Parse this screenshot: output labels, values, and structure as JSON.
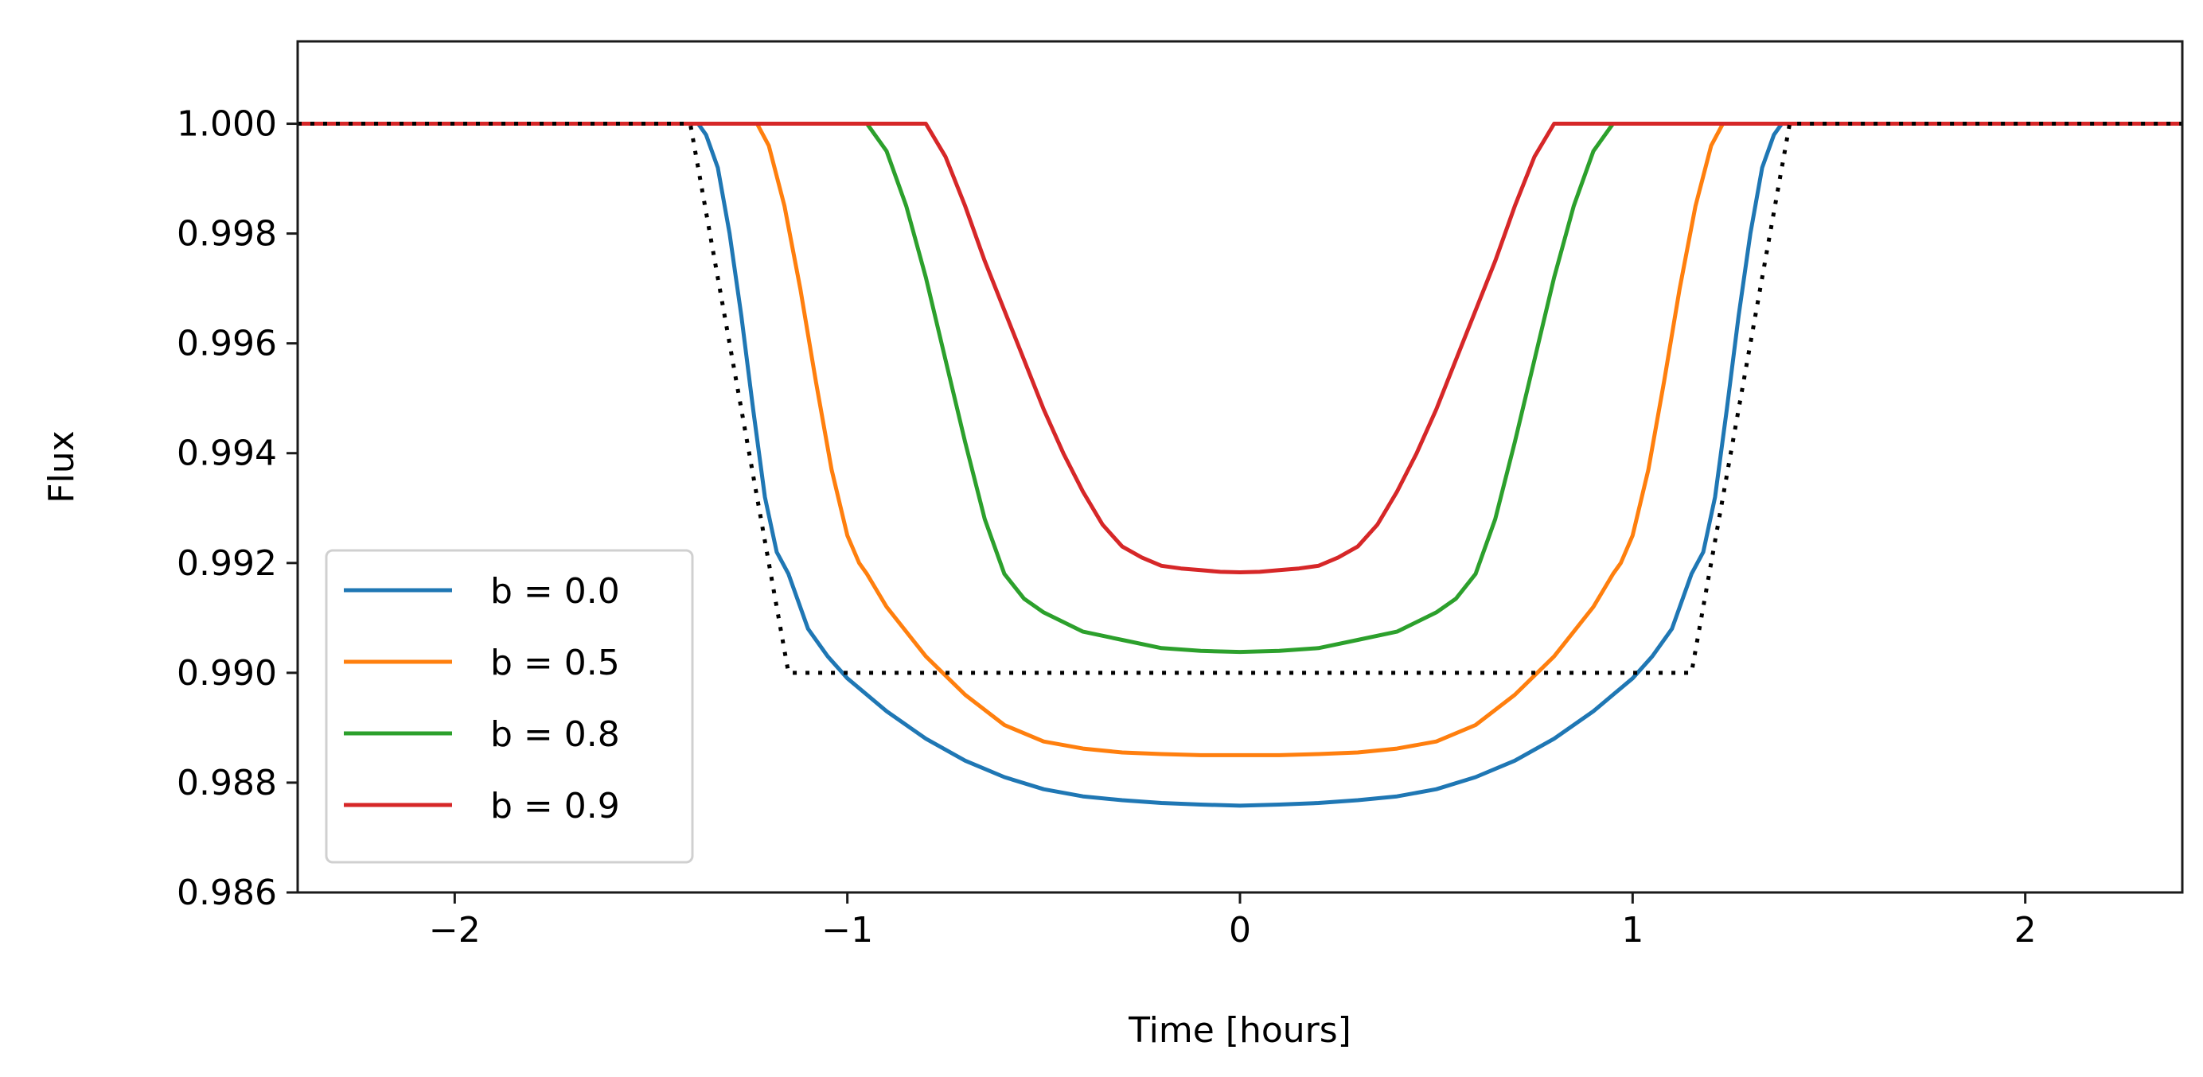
{
  "chart_data": {
    "type": "line",
    "title": "",
    "xlabel": "Time [hours]",
    "ylabel": "Flux",
    "xlim": [
      -2.4,
      2.4
    ],
    "ylim": [
      0.986,
      1.0015
    ],
    "grid": false,
    "legend_position": "lower-left",
    "xticks": [
      -2,
      -1,
      0,
      1,
      2
    ],
    "xtick_labels": [
      "−2",
      "−1",
      "0",
      "1",
      "2"
    ],
    "yticks": [
      0.986,
      0.988,
      0.99,
      0.992,
      0.994,
      0.996,
      0.998,
      1.0
    ],
    "ytick_labels": [
      "0.986",
      "0.988",
      "0.990",
      "0.992",
      "0.994",
      "0.996",
      "0.998",
      "1.000"
    ],
    "series": [
      {
        "name": "b = 0.0",
        "color": "#1f77b4",
        "style": "solid",
        "x": [
          -2.4,
          -1.38,
          -1.36,
          -1.33,
          -1.3,
          -1.27,
          -1.24,
          -1.21,
          -1.18,
          -1.15,
          -1.1,
          -1.05,
          -1.0,
          -0.9,
          -0.8,
          -0.7,
          -0.6,
          -0.5,
          -0.4,
          -0.3,
          -0.2,
          -0.1,
          0.0,
          0.1,
          0.2,
          0.3,
          0.4,
          0.5,
          0.6,
          0.7,
          0.8,
          0.9,
          1.0,
          1.05,
          1.1,
          1.15,
          1.18,
          1.21,
          1.24,
          1.27,
          1.3,
          1.33,
          1.36,
          1.38,
          2.4
        ],
        "y": [
          1.0,
          1.0,
          0.9998,
          0.9992,
          0.998,
          0.9965,
          0.9948,
          0.9932,
          0.9922,
          0.9918,
          0.9908,
          0.9903,
          0.9899,
          0.9893,
          0.9888,
          0.9884,
          0.9881,
          0.98788,
          0.98775,
          0.98768,
          0.98763,
          0.9876,
          0.98758,
          0.9876,
          0.98763,
          0.98768,
          0.98775,
          0.98788,
          0.9881,
          0.9884,
          0.9888,
          0.9893,
          0.9899,
          0.9903,
          0.9908,
          0.9918,
          0.9922,
          0.9932,
          0.9948,
          0.9965,
          0.998,
          0.9992,
          0.9998,
          1.0,
          1.0
        ]
      },
      {
        "name": "b = 0.5",
        "color": "#ff7f0e",
        "style": "solid",
        "x": [
          -2.4,
          -1.23,
          -1.2,
          -1.16,
          -1.12,
          -1.08,
          -1.04,
          -1.0,
          -0.97,
          -0.95,
          -0.9,
          -0.8,
          -0.7,
          -0.6,
          -0.5,
          -0.4,
          -0.3,
          -0.2,
          -0.1,
          0.0,
          0.1,
          0.2,
          0.3,
          0.4,
          0.5,
          0.6,
          0.7,
          0.8,
          0.9,
          0.95,
          0.97,
          1.0,
          1.04,
          1.08,
          1.12,
          1.16,
          1.2,
          1.23,
          2.4
        ],
        "y": [
          1.0,
          1.0,
          0.9996,
          0.9985,
          0.997,
          0.9953,
          0.9937,
          0.9925,
          0.992,
          0.9918,
          0.9912,
          0.9903,
          0.9896,
          0.98905,
          0.98875,
          0.98862,
          0.98855,
          0.98852,
          0.9885,
          0.9885,
          0.9885,
          0.98852,
          0.98855,
          0.98862,
          0.98875,
          0.98905,
          0.9896,
          0.9903,
          0.9912,
          0.9918,
          0.992,
          0.9925,
          0.9937,
          0.9953,
          0.997,
          0.9985,
          0.9996,
          1.0,
          1.0
        ]
      },
      {
        "name": "b = 0.8",
        "color": "#2ca02c",
        "style": "solid",
        "x": [
          -2.4,
          -0.95,
          -0.9,
          -0.85,
          -0.8,
          -0.75,
          -0.7,
          -0.65,
          -0.6,
          -0.55,
          -0.5,
          -0.4,
          -0.3,
          -0.2,
          -0.1,
          0.0,
          0.1,
          0.2,
          0.3,
          0.4,
          0.5,
          0.55,
          0.6,
          0.65,
          0.7,
          0.75,
          0.8,
          0.85,
          0.9,
          0.95,
          2.4
        ],
        "y": [
          1.0,
          1.0,
          0.9995,
          0.9985,
          0.9972,
          0.9957,
          0.9942,
          0.9928,
          0.9918,
          0.99135,
          0.9911,
          0.99075,
          0.9906,
          0.99045,
          0.9904,
          0.99038,
          0.9904,
          0.99045,
          0.9906,
          0.99075,
          0.9911,
          0.99135,
          0.9918,
          0.9928,
          0.9942,
          0.9957,
          0.9972,
          0.9985,
          0.9995,
          1.0,
          1.0
        ]
      },
      {
        "name": "b = 0.9",
        "color": "#d62728",
        "style": "solid",
        "x": [
          -2.4,
          -0.8,
          -0.75,
          -0.7,
          -0.65,
          -0.6,
          -0.55,
          -0.5,
          -0.45,
          -0.4,
          -0.35,
          -0.3,
          -0.25,
          -0.2,
          -0.15,
          -0.1,
          -0.05,
          0.0,
          0.05,
          0.1,
          0.15,
          0.2,
          0.25,
          0.3,
          0.35,
          0.4,
          0.45,
          0.5,
          0.55,
          0.6,
          0.65,
          0.7,
          0.75,
          0.8,
          2.4
        ],
        "y": [
          1.0,
          1.0,
          0.9994,
          0.9985,
          0.9975,
          0.9966,
          0.9957,
          0.9948,
          0.994,
          0.9933,
          0.9927,
          0.9923,
          0.9921,
          0.99195,
          0.9919,
          0.99187,
          0.99184,
          0.99183,
          0.99184,
          0.99187,
          0.9919,
          0.99195,
          0.9921,
          0.9923,
          0.9927,
          0.9933,
          0.994,
          0.9948,
          0.9957,
          0.9966,
          0.9975,
          0.9985,
          0.9994,
          1.0,
          1.0
        ]
      },
      {
        "name": "",
        "color": "#000000",
        "style": "dotted",
        "x": [
          -2.4,
          -1.4,
          -1.15,
          1.15,
          1.4,
          2.4
        ],
        "y": [
          1.0,
          1.0,
          0.99,
          0.99,
          1.0,
          1.0
        ]
      }
    ]
  }
}
